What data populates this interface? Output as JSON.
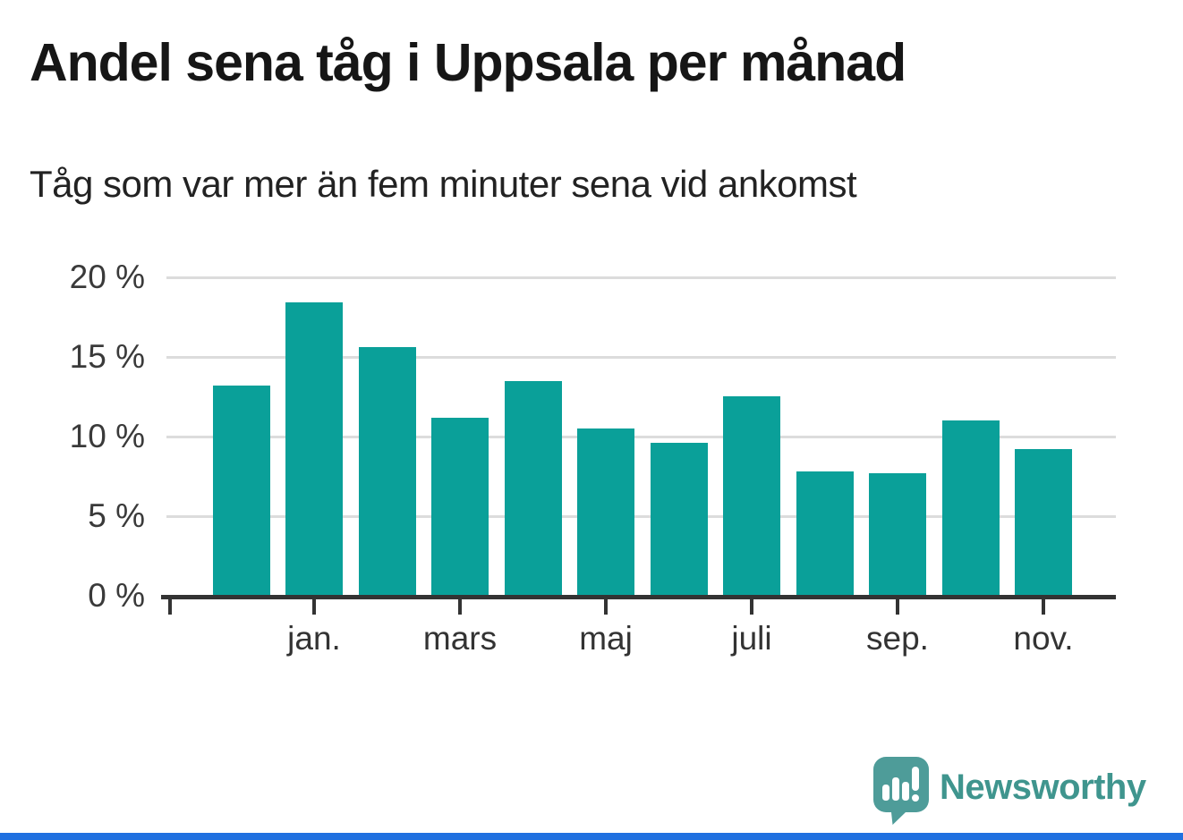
{
  "chart_data": {
    "type": "bar",
    "title": "Andel sena tåg i Uppsala per månad",
    "subtitle": "Tåg som var mer än fem minuter sena vid ankomst",
    "values": [
      13.2,
      18.4,
      15.6,
      11.2,
      13.5,
      10.5,
      9.6,
      12.5,
      7.8,
      7.7,
      11.0,
      9.2
    ],
    "unit": "%",
    "x_tick_labels": [
      "jan.",
      "mars",
      "maj",
      "juli",
      "sep.",
      "nov."
    ],
    "x_tick_bar_indices": [
      1,
      3,
      5,
      7,
      9,
      11
    ],
    "y_ticks": [
      0,
      5,
      10,
      15,
      20
    ],
    "y_tick_labels": [
      "0 %",
      "5 %",
      "10 %",
      "15 %",
      "20 %"
    ],
    "ylim": [
      0,
      20
    ],
    "grid": "horizontal",
    "legend": "none",
    "bar_color": "#0aa099",
    "gridline_color": "#dcdcdc",
    "axis_color": "#333333"
  },
  "footer": {
    "brand_name": "Newsworthy",
    "brand_text_color": "#3f958e",
    "logo_mark_color": "#4e9c99",
    "bottom_bar_color": "#2070e0"
  }
}
